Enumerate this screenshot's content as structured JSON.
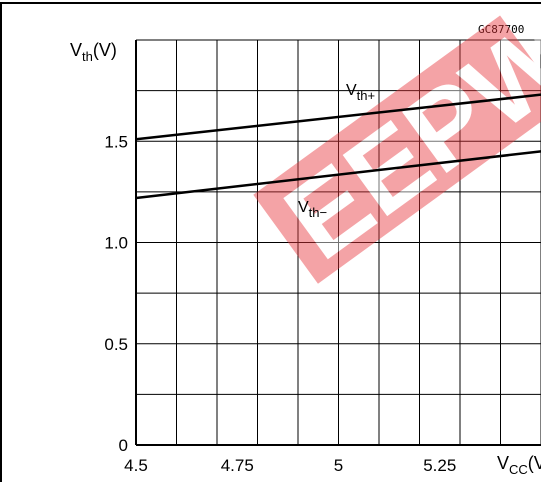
{
  "figure_code": "GC87700",
  "watermark": {
    "color": "#e8353b",
    "opacity": 0.45
  },
  "chart_data": {
    "type": "line",
    "x": [
      4.5,
      5.5
    ],
    "xlim": [
      4.5,
      5.5
    ],
    "ylim": [
      0,
      2.0
    ],
    "grid": true,
    "xticks": [
      4.5,
      4.75,
      5,
      5.25
    ],
    "xtick_labels": [
      "4.5",
      "4.75",
      "5",
      "5.25"
    ],
    "yticks": [
      0,
      0.5,
      1.0,
      1.5
    ],
    "ytick_labels": [
      "0",
      "0.5",
      "1.0",
      "1.5"
    ],
    "xlabel": {
      "main": "V",
      "sub": "CC",
      "suffix": "(V)"
    },
    "ylabel": {
      "main": "V",
      "sub": "th",
      "suffix": "(V)"
    },
    "series": [
      {
        "name": "th+",
        "label_main": "V",
        "label_sub": "th+",
        "x": [
          4.5,
          5.5
        ],
        "values": [
          1.51,
          1.73
        ],
        "color": "#000000"
      },
      {
        "name": "th-",
        "label_main": "V",
        "label_sub": "th−",
        "x": [
          4.5,
          5.5
        ],
        "values": [
          1.22,
          1.45
        ],
        "color": "#000000"
      }
    ]
  }
}
